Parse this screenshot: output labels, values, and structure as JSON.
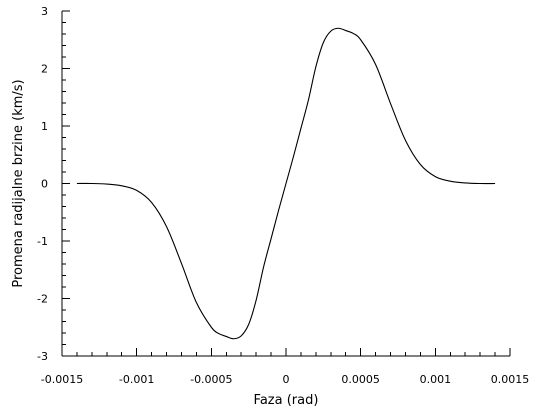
{
  "chart_data": {
    "type": "line",
    "title": "",
    "xlabel": "Faza (rad)",
    "ylabel": "Promena radijalne brzine (km/s)",
    "xlim": [
      -0.0015,
      0.0015
    ],
    "ylim": [
      -3,
      3
    ],
    "x_ticks": [
      -0.0015,
      -0.001,
      -0.0005,
      0,
      0.0005,
      0.001,
      0.0015
    ],
    "x_tick_labels": [
      "-0.0015",
      "-0.001",
      "-0.0005",
      "0",
      "0.0005",
      "0.001",
      "0.0015"
    ],
    "y_ticks": [
      -3,
      -2,
      -1,
      0,
      1,
      2,
      3
    ],
    "y_tick_labels": [
      "-3",
      "-2",
      "-1",
      "0",
      "1",
      "2",
      "3"
    ],
    "grid": false,
    "series": [
      {
        "color": "#000000",
        "x": [
          -0.0014,
          -0.0013,
          -0.0012,
          -0.0011,
          -0.001,
          -0.0009,
          -0.0008,
          -0.0007,
          -0.0006,
          -0.0005,
          -0.00045,
          -0.0004,
          -0.00035,
          -0.0003,
          -0.00025,
          -0.0002,
          -0.00015,
          -0.0001,
          -5e-05,
          0,
          5e-05,
          0.0001,
          0.00015,
          0.0002,
          0.00025,
          0.0003,
          0.00035,
          0.0004,
          0.00045,
          0.0005,
          0.0006,
          0.0007,
          0.0008,
          0.0009,
          0.001,
          0.0011,
          0.0012,
          0.0013,
          0.0014
        ],
        "y": [
          0.0,
          0.0,
          -0.01,
          -0.04,
          -0.12,
          -0.33,
          -0.75,
          -1.39,
          -2.07,
          -2.5,
          -2.61,
          -2.66,
          -2.7,
          -2.65,
          -2.45,
          -2.03,
          -1.45,
          -0.96,
          -0.47,
          0.0,
          0.47,
          0.96,
          1.45,
          2.03,
          2.45,
          2.65,
          2.7,
          2.66,
          2.61,
          2.5,
          2.07,
          1.39,
          0.75,
          0.33,
          0.12,
          0.04,
          0.01,
          0.0,
          0.0
        ]
      }
    ]
  }
}
